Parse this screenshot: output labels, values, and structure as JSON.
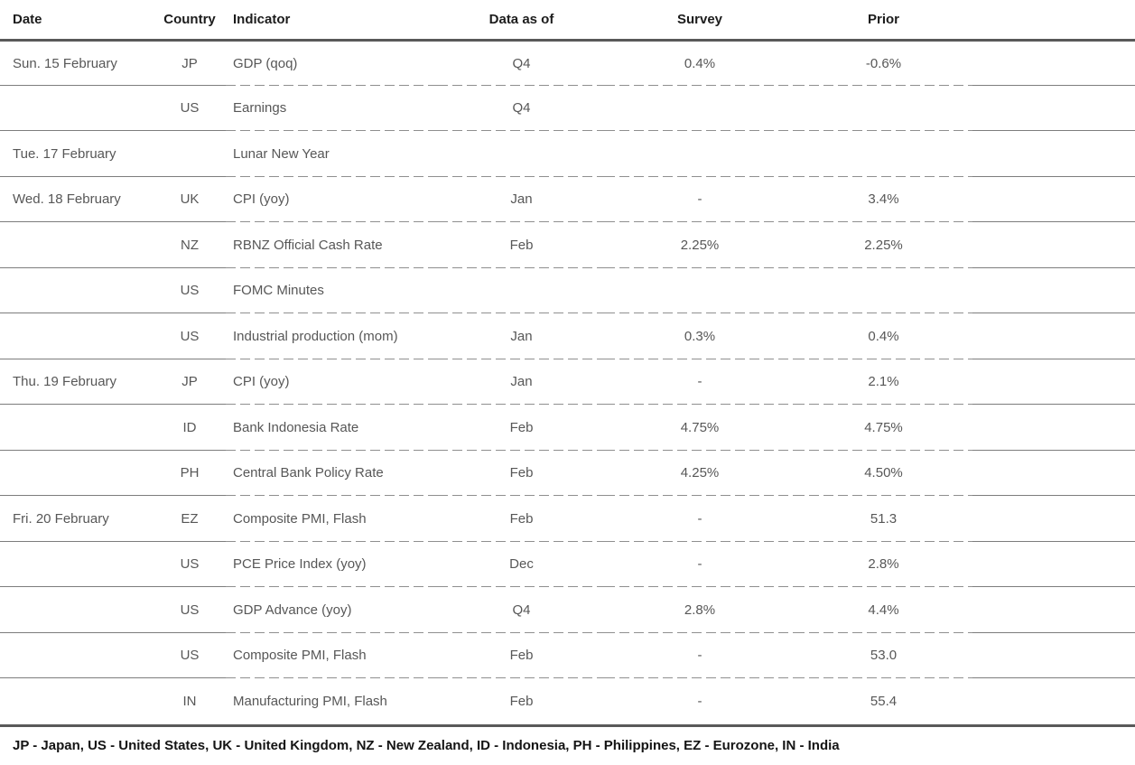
{
  "table": {
    "columns": {
      "date": "Date",
      "country": "Country",
      "indicator": "Indicator",
      "data_as_of": "Data as of",
      "survey": "Survey",
      "prior": "Prior"
    },
    "rows": [
      {
        "date": "Sun. 15 February",
        "country": "JP",
        "indicator": "GDP (qoq)",
        "data_as_of": "Q4",
        "survey": "0.4%",
        "prior": "-0.6%"
      },
      {
        "date": "",
        "country": "US",
        "indicator": "Earnings",
        "data_as_of": "Q4",
        "survey": "",
        "prior": ""
      },
      {
        "date": "Tue. 17 February",
        "country": "",
        "indicator": "Lunar New Year",
        "data_as_of": "",
        "survey": "",
        "prior": ""
      },
      {
        "date": "Wed. 18 February",
        "country": "UK",
        "indicator": "CPI (yoy)",
        "data_as_of": "Jan",
        "survey": "-",
        "prior": "3.4%"
      },
      {
        "date": "",
        "country": "NZ",
        "indicator": "RBNZ Official Cash Rate",
        "data_as_of": "Feb",
        "survey": "2.25%",
        "prior": "2.25%"
      },
      {
        "date": "",
        "country": "US",
        "indicator": "FOMC Minutes",
        "data_as_of": "",
        "survey": "",
        "prior": ""
      },
      {
        "date": "",
        "country": "US",
        "indicator": "Industrial production (mom)",
        "data_as_of": "Jan",
        "survey": "0.3%",
        "prior": "0.4%"
      },
      {
        "date": "Thu. 19 February",
        "country": "JP",
        "indicator": "CPI (yoy)",
        "data_as_of": "Jan",
        "survey": "-",
        "prior": "2.1%"
      },
      {
        "date": "",
        "country": "ID",
        "indicator": "Bank Indonesia Rate",
        "data_as_of": "Feb",
        "survey": "4.75%",
        "prior": "4.75%"
      },
      {
        "date": "",
        "country": "PH",
        "indicator": "Central Bank Policy Rate",
        "data_as_of": "Feb",
        "survey": "4.25%",
        "prior": "4.50%"
      },
      {
        "date": "Fri. 20 February",
        "country": "EZ",
        "indicator": "Composite PMI, Flash",
        "data_as_of": "Feb",
        "survey": "-",
        "prior": "51.3"
      },
      {
        "date": "",
        "country": "US",
        "indicator": "PCE Price Index (yoy)",
        "data_as_of": "Dec",
        "survey": "-",
        "prior": "2.8%"
      },
      {
        "date": "",
        "country": "US",
        "indicator": "GDP Advance (yoy)",
        "data_as_of": "Q4",
        "survey": "2.8%",
        "prior": "4.4%"
      },
      {
        "date": "",
        "country": "US",
        "indicator": "Composite PMI, Flash",
        "data_as_of": "Feb",
        "survey": "-",
        "prior": "53.0"
      },
      {
        "date": "",
        "country": "IN",
        "indicator": "Manufacturing PMI, Flash",
        "data_as_of": "Feb",
        "survey": "-",
        "prior": "55.4"
      }
    ]
  },
  "footer": {
    "legend": "JP - Japan, US - United States, UK - United Kingdom, NZ - New Zealand, ID - Indonesia, PH - Philippines, EZ - Eurozone, IN - India"
  },
  "colors": {
    "background": "#ffffff",
    "thick_rule": "#595959",
    "thin_solid_rule": "#7d7d7d",
    "dashed_rule": "#8f8f8f",
    "header_text": "#1c1c1c",
    "body_text": "#575757",
    "footer_text": "#141414"
  }
}
